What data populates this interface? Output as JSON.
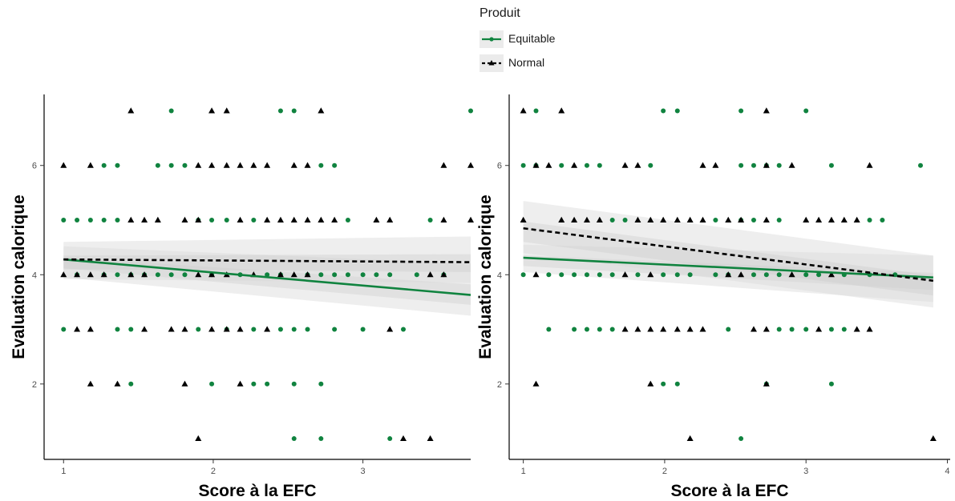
{
  "legend": {
    "title": "Produit",
    "items": [
      {
        "label": "Equitable",
        "color": "#10833f",
        "line": "solid",
        "marker": "circle"
      },
      {
        "label": "Normal",
        "color": "#000000",
        "line": "dashed",
        "marker": "triangle"
      }
    ]
  },
  "chart_data": [
    {
      "type": "scatter",
      "title": "",
      "xlabel": "Score à la EFC",
      "ylabel": "Evaluation calorique",
      "xlim": [
        0.87,
        3.72
      ],
      "ylim": [
        0.62,
        7.3
      ],
      "xticks": [
        1,
        2,
        3
      ],
      "yticks": [
        2,
        4,
        6
      ],
      "grid": false,
      "fit_x_range": [
        1.0,
        3.72
      ],
      "series": [
        {
          "name": "Equitable",
          "color": "#10833f",
          "marker": "circle",
          "line_style": "solid",
          "fit": [
            [
              1.0,
              4.28
            ],
            [
              3.72,
              3.63
            ]
          ],
          "ci_band": {
            "lower": [
              3.95,
              3.25
            ],
            "mid": [
              4.12,
              3.45
            ],
            "upper": [
              4.52,
              4.2
            ]
          },
          "points": [
            [
              1.0,
              5
            ],
            [
              1.09,
              5
            ],
            [
              1.18,
              5
            ],
            [
              1.27,
              5
            ],
            [
              1.36,
              5
            ],
            [
              1.09,
              4
            ],
            [
              1.27,
              4
            ],
            [
              1.36,
              4
            ],
            [
              1.45,
              4
            ],
            [
              1.54,
              4
            ],
            [
              1.63,
              4
            ],
            [
              1.72,
              4
            ],
            [
              1.81,
              4
            ],
            [
              1.0,
              3
            ],
            [
              1.36,
              3
            ],
            [
              1.45,
              3
            ],
            [
              1.9,
              3
            ],
            [
              2.09,
              3
            ],
            [
              2.27,
              3
            ],
            [
              2.45,
              3
            ],
            [
              2.54,
              3
            ],
            [
              2.63,
              3
            ],
            [
              2.81,
              3
            ],
            [
              3.0,
              3
            ],
            [
              3.27,
              3
            ],
            [
              1.27,
              6
            ],
            [
              1.36,
              6
            ],
            [
              1.63,
              6
            ],
            [
              1.72,
              6
            ],
            [
              1.81,
              6
            ],
            [
              2.72,
              6
            ],
            [
              2.81,
              6
            ],
            [
              1.72,
              7
            ],
            [
              2.45,
              7
            ],
            [
              2.54,
              7
            ],
            [
              3.72,
              7
            ],
            [
              1.45,
              2
            ],
            [
              1.99,
              2
            ],
            [
              2.27,
              2
            ],
            [
              2.36,
              2
            ],
            [
              2.54,
              2
            ],
            [
              2.72,
              2
            ],
            [
              2.54,
              1
            ],
            [
              2.72,
              1
            ],
            [
              3.18,
              1
            ],
            [
              1.9,
              5
            ],
            [
              1.99,
              5
            ],
            [
              2.09,
              5
            ],
            [
              2.27,
              5
            ],
            [
              2.9,
              5
            ],
            [
              3.45,
              5
            ],
            [
              1.99,
              4
            ],
            [
              2.18,
              4
            ],
            [
              2.36,
              4
            ],
            [
              2.45,
              4
            ],
            [
              2.63,
              4
            ],
            [
              2.72,
              4
            ],
            [
              2.81,
              4
            ],
            [
              2.9,
              4
            ],
            [
              3.0,
              4
            ],
            [
              3.09,
              4
            ],
            [
              3.18,
              4
            ],
            [
              3.36,
              4
            ],
            [
              3.54,
              4
            ]
          ]
        },
        {
          "name": "Normal",
          "color": "#000000",
          "marker": "triangle",
          "line_style": "dashed",
          "fit": [
            [
              1.0,
              4.28
            ],
            [
              3.72,
              4.23
            ]
          ],
          "ci_band": {
            "lower": [
              3.92,
              3.85
            ],
            "mid": [
              4.1,
              4.05
            ],
            "upper": [
              4.6,
              4.7
            ]
          },
          "points": [
            [
              1.0,
              6
            ],
            [
              1.18,
              6
            ],
            [
              1.9,
              6
            ],
            [
              1.99,
              6
            ],
            [
              2.09,
              6
            ],
            [
              2.18,
              6
            ],
            [
              2.27,
              6
            ],
            [
              2.36,
              6
            ],
            [
              2.54,
              6
            ],
            [
              2.63,
              6
            ],
            [
              3.54,
              6
            ],
            [
              3.72,
              6
            ],
            [
              1.45,
              7
            ],
            [
              1.99,
              7
            ],
            [
              2.09,
              7
            ],
            [
              2.72,
              7
            ],
            [
              1.45,
              5
            ],
            [
              1.54,
              5
            ],
            [
              1.63,
              5
            ],
            [
              1.81,
              5
            ],
            [
              1.9,
              5
            ],
            [
              2.18,
              5
            ],
            [
              2.36,
              5
            ],
            [
              2.45,
              5
            ],
            [
              2.54,
              5
            ],
            [
              2.63,
              5
            ],
            [
              2.72,
              5
            ],
            [
              2.81,
              5
            ],
            [
              3.09,
              5
            ],
            [
              3.18,
              5
            ],
            [
              3.54,
              5
            ],
            [
              3.72,
              5
            ],
            [
              1.0,
              4
            ],
            [
              1.09,
              4
            ],
            [
              1.18,
              4
            ],
            [
              1.27,
              4
            ],
            [
              1.45,
              4
            ],
            [
              1.54,
              4
            ],
            [
              1.9,
              4
            ],
            [
              1.99,
              4
            ],
            [
              2.09,
              4
            ],
            [
              2.27,
              4
            ],
            [
              2.45,
              4
            ],
            [
              2.54,
              4
            ],
            [
              2.63,
              4
            ],
            [
              3.45,
              4
            ],
            [
              3.54,
              4
            ],
            [
              1.09,
              3
            ],
            [
              1.18,
              3
            ],
            [
              1.54,
              3
            ],
            [
              1.72,
              3
            ],
            [
              1.81,
              3
            ],
            [
              1.99,
              3
            ],
            [
              2.09,
              3
            ],
            [
              2.18,
              3
            ],
            [
              2.36,
              3
            ],
            [
              3.18,
              3
            ],
            [
              1.18,
              2
            ],
            [
              1.36,
              2
            ],
            [
              1.81,
              2
            ],
            [
              2.18,
              2
            ],
            [
              1.9,
              1
            ],
            [
              3.27,
              1
            ],
            [
              3.45,
              1
            ]
          ]
        }
      ]
    },
    {
      "type": "scatter",
      "title": "",
      "xlabel": "Score à la EFC",
      "ylabel": "Evaluation calorique",
      "xlim": [
        0.9,
        4.02
      ],
      "ylim": [
        0.62,
        7.3
      ],
      "xticks": [
        1,
        2,
        3,
        4
      ],
      "yticks": [
        2,
        4,
        6
      ],
      "grid": false,
      "fit_x_range": [
        1.0,
        3.9
      ],
      "series": [
        {
          "name": "Equitable",
          "color": "#10833f",
          "marker": "circle",
          "line_style": "solid",
          "fit": [
            [
              1.0,
              4.31
            ],
            [
              3.9,
              3.95
            ]
          ],
          "ci_band": {
            "lower": [
              4.05,
              3.5
            ],
            "mid": [
              4.16,
              3.72
            ],
            "upper": [
              4.55,
              4.35
            ]
          },
          "points": [
            [
              1.0,
              6
            ],
            [
              1.09,
              6
            ],
            [
              1.27,
              6
            ],
            [
              1.45,
              6
            ],
            [
              1.54,
              6
            ],
            [
              1.9,
              6
            ],
            [
              2.54,
              6
            ],
            [
              2.63,
              6
            ],
            [
              2.72,
              6
            ],
            [
              2.81,
              6
            ],
            [
              3.18,
              6
            ],
            [
              3.81,
              6
            ],
            [
              1.09,
              7
            ],
            [
              1.99,
              7
            ],
            [
              2.09,
              7
            ],
            [
              2.54,
              7
            ],
            [
              3.0,
              7
            ],
            [
              1.63,
              5
            ],
            [
              1.72,
              5
            ],
            [
              2.36,
              5
            ],
            [
              2.54,
              5
            ],
            [
              2.63,
              5
            ],
            [
              2.81,
              5
            ],
            [
              3.45,
              5
            ],
            [
              3.54,
              5
            ],
            [
              1.0,
              4
            ],
            [
              1.18,
              4
            ],
            [
              1.27,
              4
            ],
            [
              1.36,
              4
            ],
            [
              1.45,
              4
            ],
            [
              1.54,
              4
            ],
            [
              1.63,
              4
            ],
            [
              1.81,
              4
            ],
            [
              1.99,
              4
            ],
            [
              2.09,
              4
            ],
            [
              2.18,
              4
            ],
            [
              2.36,
              4
            ],
            [
              2.45,
              4
            ],
            [
              2.63,
              4
            ],
            [
              2.72,
              4
            ],
            [
              2.81,
              4
            ],
            [
              3.0,
              4
            ],
            [
              3.09,
              4
            ],
            [
              3.27,
              4
            ],
            [
              3.45,
              4
            ],
            [
              3.63,
              4
            ],
            [
              1.18,
              3
            ],
            [
              1.36,
              3
            ],
            [
              1.45,
              3
            ],
            [
              1.54,
              3
            ],
            [
              1.63,
              3
            ],
            [
              2.45,
              3
            ],
            [
              2.81,
              3
            ],
            [
              2.9,
              3
            ],
            [
              3.0,
              3
            ],
            [
              3.18,
              3
            ],
            [
              3.27,
              3
            ],
            [
              1.99,
              2
            ],
            [
              2.09,
              2
            ],
            [
              2.72,
              2
            ],
            [
              3.18,
              2
            ],
            [
              2.54,
              1
            ]
          ]
        },
        {
          "name": "Normal",
          "color": "#000000",
          "marker": "triangle",
          "line_style": "dashed",
          "fit": [
            [
              1.0,
              4.85
            ],
            [
              3.9,
              3.89
            ]
          ],
          "ci_band": {
            "lower": [
              4.4,
              3.4
            ],
            "mid": [
              4.6,
              3.62
            ],
            "upper": [
              5.35,
              4.35
            ]
          },
          "points": [
            [
              1.0,
              7
            ],
            [
              1.27,
              7
            ],
            [
              2.72,
              7
            ],
            [
              1.09,
              6
            ],
            [
              1.18,
              6
            ],
            [
              1.36,
              6
            ],
            [
              1.72,
              6
            ],
            [
              1.81,
              6
            ],
            [
              2.27,
              6
            ],
            [
              2.36,
              6
            ],
            [
              2.72,
              6
            ],
            [
              2.9,
              6
            ],
            [
              3.45,
              6
            ],
            [
              1.0,
              5
            ],
            [
              1.27,
              5
            ],
            [
              1.36,
              5
            ],
            [
              1.45,
              5
            ],
            [
              1.54,
              5
            ],
            [
              1.81,
              5
            ],
            [
              1.9,
              5
            ],
            [
              1.99,
              5
            ],
            [
              2.09,
              5
            ],
            [
              2.18,
              5
            ],
            [
              2.27,
              5
            ],
            [
              2.45,
              5
            ],
            [
              2.54,
              5
            ],
            [
              2.72,
              5
            ],
            [
              3.0,
              5
            ],
            [
              3.09,
              5
            ],
            [
              3.18,
              5
            ],
            [
              3.27,
              5
            ],
            [
              3.36,
              5
            ],
            [
              1.09,
              4
            ],
            [
              1.72,
              4
            ],
            [
              1.9,
              4
            ],
            [
              2.45,
              4
            ],
            [
              2.54,
              4
            ],
            [
              2.9,
              4
            ],
            [
              3.18,
              4
            ],
            [
              1.72,
              3
            ],
            [
              1.81,
              3
            ],
            [
              1.9,
              3
            ],
            [
              1.99,
              3
            ],
            [
              2.09,
              3
            ],
            [
              2.18,
              3
            ],
            [
              2.27,
              3
            ],
            [
              2.63,
              3
            ],
            [
              2.72,
              3
            ],
            [
              3.09,
              3
            ],
            [
              3.36,
              3
            ],
            [
              3.45,
              3
            ],
            [
              1.09,
              2
            ],
            [
              1.9,
              2
            ],
            [
              2.72,
              2
            ],
            [
              2.18,
              1
            ],
            [
              3.9,
              1
            ]
          ]
        }
      ]
    }
  ]
}
